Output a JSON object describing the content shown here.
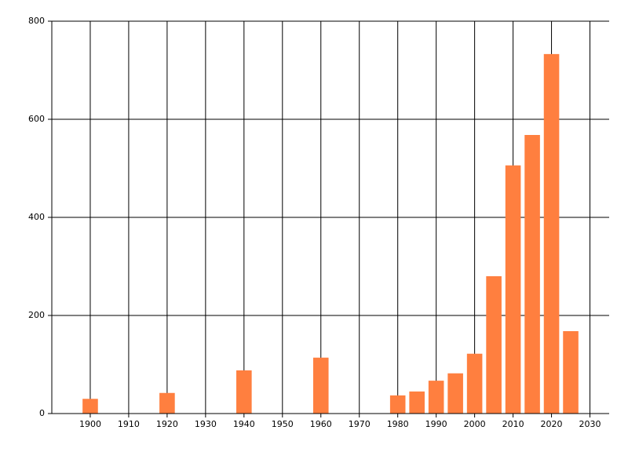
{
  "chart_data": {
    "type": "bar",
    "x": [
      1900,
      1920,
      1940,
      1960,
      1980,
      1985,
      1990,
      1995,
      2000,
      2005,
      2010,
      2015,
      2020,
      2025
    ],
    "values": [
      30,
      42,
      88,
      114,
      37,
      45,
      67,
      82,
      122,
      280,
      506,
      568,
      733,
      168
    ],
    "color": "#ff7f3f",
    "xlim": [
      1890,
      2035
    ],
    "xticks": [
      1900,
      1910,
      1920,
      1930,
      1940,
      1950,
      1960,
      1970,
      1980,
      1990,
      2000,
      2010,
      2020,
      2030
    ],
    "ylim": [
      0,
      800
    ],
    "yticks": [
      0,
      200,
      400,
      600,
      800
    ],
    "grid": true
  }
}
